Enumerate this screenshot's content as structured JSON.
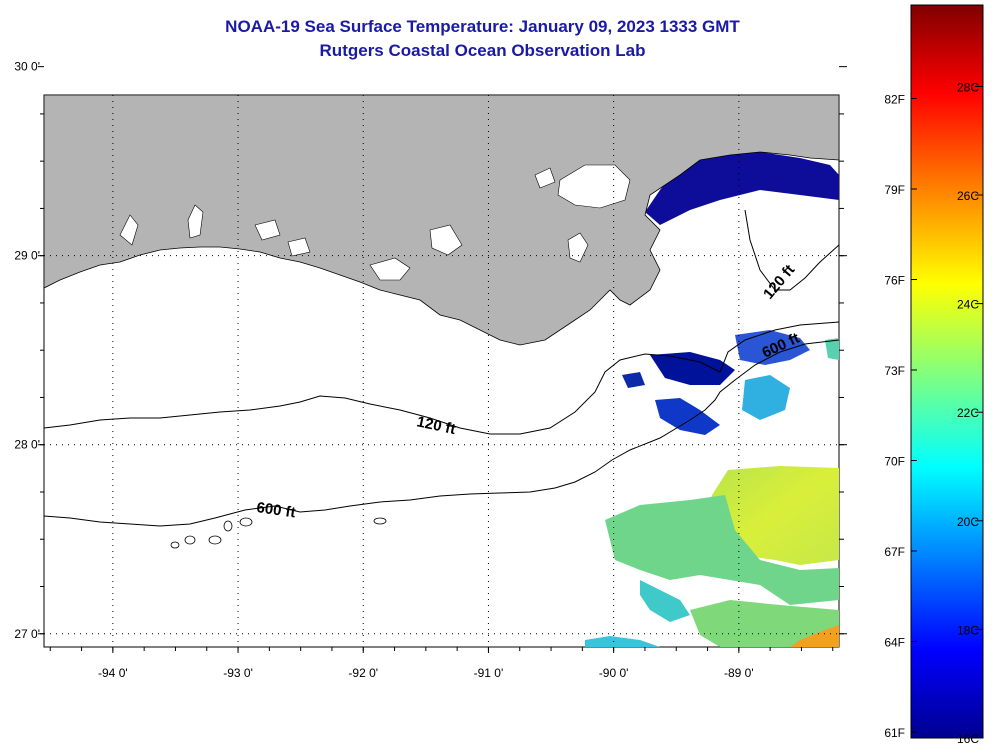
{
  "header": {
    "title": "NOAA-19 Sea Surface Temperature:  January 09, 2023 1333 GMT",
    "subtitle": "Rutgers Coastal Ocean Observation Lab"
  },
  "map": {
    "lon_range": [
      -94.55,
      -88.2
    ],
    "lat_range": [
      26.93,
      29.85
    ],
    "lon_ticks": [
      {
        "value": -94,
        "label": "-94 0'"
      },
      {
        "value": -93,
        "label": "-93 0'"
      },
      {
        "value": -92,
        "label": "-92 0'"
      },
      {
        "value": -91,
        "label": "-91 0'"
      },
      {
        "value": -90,
        "label": "-90 0'"
      },
      {
        "value": -89,
        "label": "-89 0'"
      }
    ],
    "lat_ticks": [
      {
        "value": 30,
        "label": "30 0'"
      },
      {
        "value": 29,
        "label": "29 0'"
      },
      {
        "value": 28,
        "label": "28 0'"
      },
      {
        "value": 27,
        "label": "27 0'"
      }
    ],
    "land_color": "#b4b4b4",
    "contour_labels": [
      {
        "name": "contour-label-120ft-west",
        "text": "120 ft"
      },
      {
        "name": "contour-label-120ft-east",
        "text": "120 ft"
      },
      {
        "name": "contour-label-600ft-west",
        "text": "600 ft"
      },
      {
        "name": "contour-label-600ft-east",
        "text": "600 ft"
      }
    ]
  },
  "colorbar": {
    "f_labels": [
      "82F",
      "79F",
      "76F",
      "73F",
      "70F",
      "67F",
      "64F",
      "61F"
    ],
    "c_labels": [
      "28C",
      "26C",
      "24C",
      "22C",
      "20C",
      "18C",
      "16C"
    ],
    "range_c": [
      16,
      29.5
    ],
    "colors": [
      "#00008f",
      "#0000ff",
      "#00ffff",
      "#ffff00",
      "#ff8000",
      "#ff0000",
      "#800000"
    ]
  }
}
